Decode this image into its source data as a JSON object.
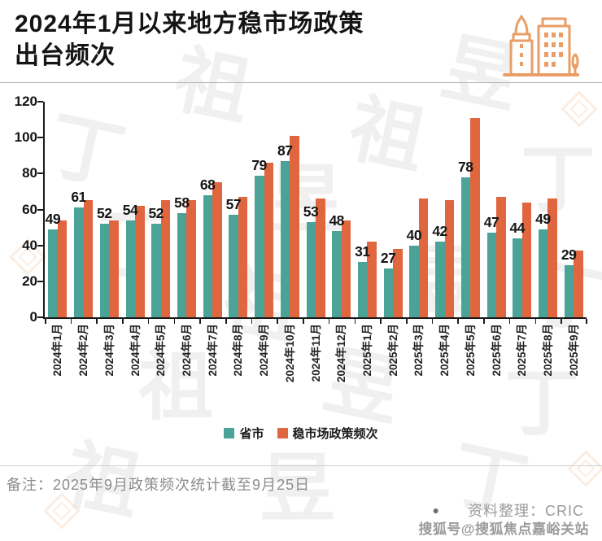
{
  "header": {
    "title_line1": "2024年1月以来地方稳市场政策",
    "title_line2": "出台频次"
  },
  "chart_data": {
    "type": "bar",
    "title": "2024年1月以来地方稳市场政策出台频次",
    "xlabel": "",
    "ylabel": "",
    "ylim": [
      0,
      120
    ],
    "yticks": [
      0,
      20,
      40,
      60,
      80,
      100,
      120
    ],
    "grid": false,
    "legend_position": "bottom",
    "categories": [
      "2024年1月",
      "2024年2月",
      "2024年3月",
      "2024年4月",
      "2024年5月",
      "2024年6月",
      "2024年7月",
      "2024年8月",
      "2024年9月",
      "2024年10月",
      "2024年11月",
      "2024年12月",
      "2025年1月",
      "2025年2月",
      "2025年3月",
      "2025年4月",
      "2025年5月",
      "2025年6月",
      "2025年7月",
      "2025年8月",
      "2025年9月"
    ],
    "series": [
      {
        "name": "省市",
        "color": "#4aa396",
        "data_labels": true,
        "values": [
          49,
          61,
          52,
          54,
          52,
          58,
          68,
          57,
          79,
          87,
          53,
          48,
          31,
          27,
          40,
          42,
          78,
          47,
          44,
          49,
          29
        ]
      },
      {
        "name": "稳市场政策频次",
        "color": "#e0663f",
        "data_labels": false,
        "values": [
          54,
          65,
          54,
          62,
          65,
          65,
          75,
          67,
          86,
          101,
          66,
          54,
          42,
          38,
          66,
          65,
          111,
          67,
          64,
          66,
          37
        ]
      }
    ]
  },
  "footer": {
    "note": "备注：2025年9月政策频次统计截至9月25日",
    "source_bullet": "●",
    "source": "资料整理：CRIC",
    "watermark": "搜狐号@搜狐焦点嘉峪关站"
  },
  "background_watermark_chars": [
    "丁",
    "祖",
    "昱"
  ],
  "accent_colors": {
    "teal": "#4aa396",
    "orange": "#e0663f",
    "icon_orange": "#ea9e66"
  }
}
